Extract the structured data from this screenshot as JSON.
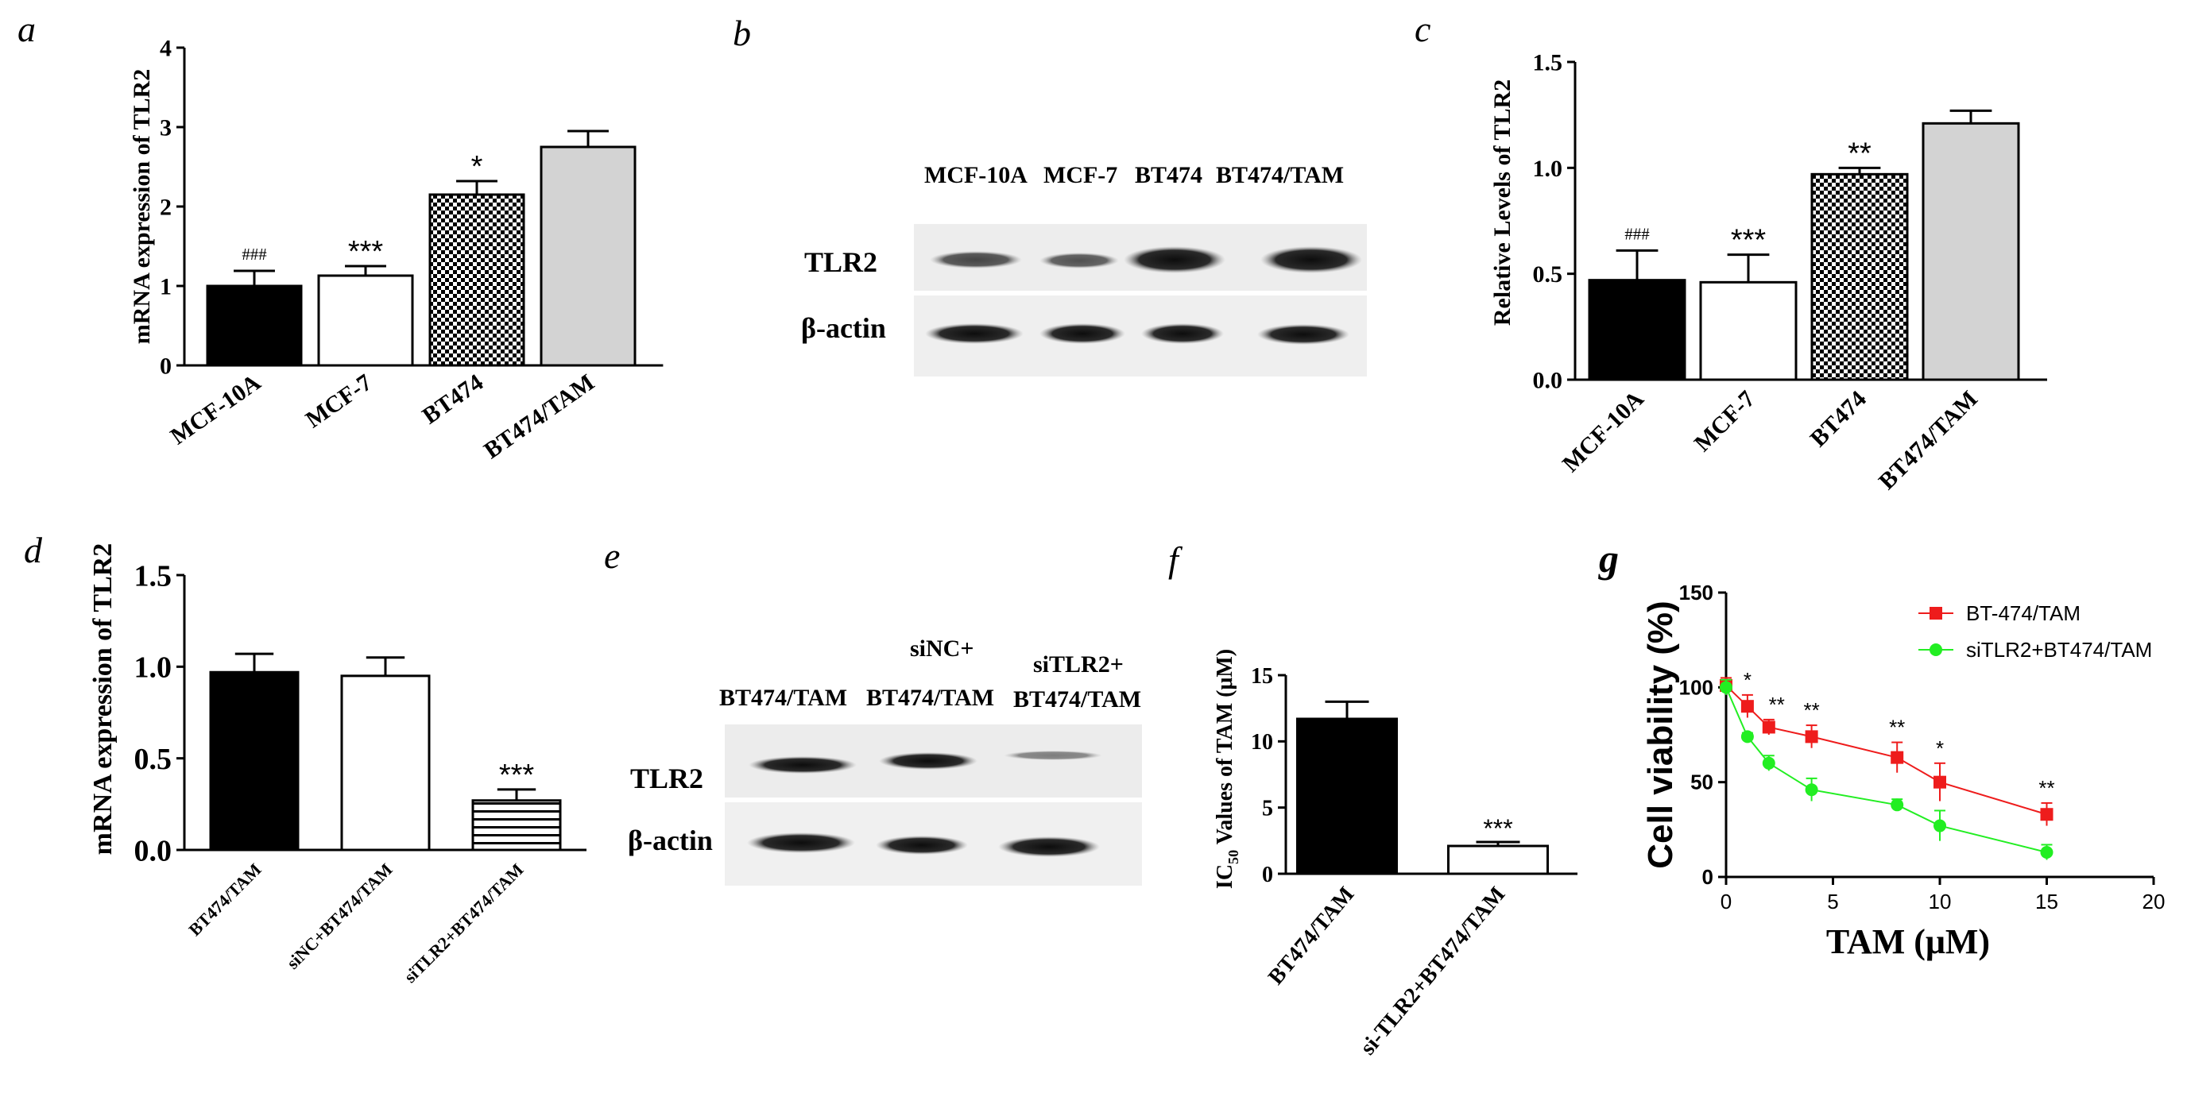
{
  "panels": {
    "a": {
      "label": "a"
    },
    "b": {
      "label": "b",
      "lanes": [
        "MCF-10A",
        "MCF-7",
        "BT474",
        "BT474/TAM"
      ],
      "rows": [
        "TLR2",
        "β-actin"
      ]
    },
    "c": {
      "label": "c"
    },
    "d": {
      "label": "d"
    },
    "e": {
      "label": "e",
      "lanes": [
        [
          "BT474/TAM"
        ],
        [
          "siNC+",
          "BT474/TAM"
        ],
        [
          "siTLR2+",
          "BT474/TAM"
        ]
      ],
      "rows": [
        "TLR2",
        "β-actin"
      ]
    },
    "f": {
      "label": "f"
    },
    "g": {
      "label": "g"
    }
  },
  "colors": {
    "black_bar": "#000000",
    "white_bar": "#ffffff",
    "gray_bar": "#d3d3d3",
    "series_red": "#ee1c1c",
    "series_green": "#22ee22"
  },
  "chart_data": [
    {
      "id": "a",
      "type": "bar",
      "ylabel": "mRNA expression of TLR2",
      "categories": [
        "MCF-10A",
        "MCF-7",
        "BT474",
        "BT474/TAM"
      ],
      "values": [
        1.0,
        1.13,
        2.15,
        2.75
      ],
      "errors": [
        0.19,
        0.12,
        0.17,
        0.2
      ],
      "annotations": [
        "###",
        "***",
        "*",
        ""
      ],
      "fills": [
        "black",
        "white",
        "checker",
        "gray"
      ],
      "ylim": [
        0,
        4
      ],
      "yticks": [
        "0",
        "1",
        "2",
        "3",
        "4"
      ]
    },
    {
      "id": "c",
      "type": "bar",
      "ylabel": "Relative Levels of TLR2",
      "categories": [
        "MCF-10A",
        "MCF-7",
        "BT474",
        "BT474/TAM"
      ],
      "values": [
        0.47,
        0.46,
        0.97,
        1.21
      ],
      "errors": [
        0.14,
        0.13,
        0.03,
        0.06
      ],
      "annotations": [
        "###",
        "***",
        "**",
        ""
      ],
      "fills": [
        "black",
        "white",
        "checker",
        "gray"
      ],
      "ylim": [
        0,
        1.5
      ],
      "yticks": [
        "0.0",
        "0.5",
        "1.0",
        "1.5"
      ]
    },
    {
      "id": "d",
      "type": "bar",
      "ylabel": "mRNA expression of TLR2",
      "categories": [
        "BT474/TAM",
        "siNC+BT474/TAM",
        "siTLR2+BT474/TAM"
      ],
      "values": [
        0.97,
        0.95,
        0.27
      ],
      "errors": [
        0.1,
        0.1,
        0.06
      ],
      "annotations": [
        "",
        "",
        "***"
      ],
      "fills": [
        "black",
        "white",
        "hlines"
      ],
      "ylim": [
        0,
        1.5
      ],
      "yticks": [
        "0.0",
        "0.5",
        "1.0",
        "1.5"
      ]
    },
    {
      "id": "f",
      "type": "bar",
      "ylabel_main": "IC",
      "ylabel_sub": "50",
      "ylabel_rest": " Values of TAM (μM)",
      "categories": [
        "BT474/TAM",
        "si-TLR2+BT474/TAM"
      ],
      "values": [
        11.7,
        2.1
      ],
      "errors": [
        1.3,
        0.3
      ],
      "annotations": [
        "",
        "***"
      ],
      "fills": [
        "black",
        "white"
      ],
      "ylim": [
        0,
        15
      ],
      "yticks": [
        "0",
        "5",
        "10",
        "15"
      ]
    },
    {
      "id": "g",
      "type": "line",
      "xlabel": "TAM (μM)",
      "ylabel": "Cell viability (%)",
      "xlim": [
        0,
        20
      ],
      "ylim": [
        0,
        150
      ],
      "xticks": [
        "0",
        "5",
        "10",
        "15",
        "20"
      ],
      "yticks": [
        "0",
        "50",
        "100",
        "150"
      ],
      "legend_position": "top-right",
      "series": [
        {
          "name": "BT-474/TAM",
          "color": "#ee1c1c",
          "marker": "square",
          "x": [
            0,
            1,
            2,
            4,
            8,
            10,
            15
          ],
          "y": [
            101,
            90,
            79,
            74,
            63,
            50,
            33
          ],
          "err": [
            4,
            6,
            4,
            6,
            8,
            10,
            6
          ]
        },
        {
          "name": "siTLR2+BT474/TAM",
          "color": "#22ee22",
          "marker": "circle",
          "x": [
            0,
            1,
            2,
            4,
            8,
            10,
            15
          ],
          "y": [
            100,
            74,
            60,
            46,
            38,
            27,
            13
          ],
          "err": [
            4,
            2,
            4,
            6,
            3,
            8,
            4
          ]
        }
      ],
      "annotations": [
        {
          "x": 1,
          "text": "*"
        },
        {
          "x": 2,
          "text": "**"
        },
        {
          "x": 4,
          "text": "**"
        },
        {
          "x": 8,
          "text": "**"
        },
        {
          "x": 10,
          "text": "*"
        },
        {
          "x": 15,
          "text": "**"
        }
      ]
    }
  ]
}
